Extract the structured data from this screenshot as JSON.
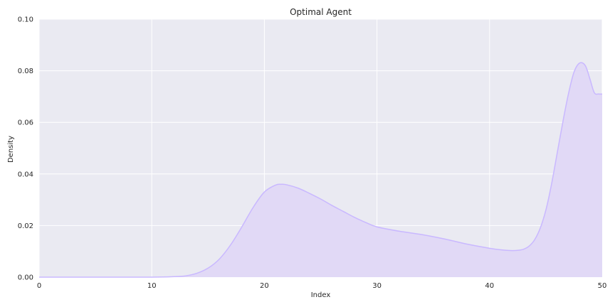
{
  "chart_data": {
    "type": "area",
    "title": "Optimal Agent",
    "xlabel": "Index",
    "ylabel": "Density",
    "xlim": [
      0,
      50
    ],
    "ylim": [
      0,
      0.1
    ],
    "x_ticks": [
      "0",
      "10",
      "20",
      "30",
      "40",
      "50"
    ],
    "y_ticks": [
      "0.00",
      "0.02",
      "0.04",
      "0.06",
      "0.08",
      "0.10"
    ],
    "grid": true,
    "colors": {
      "plot_background": "#eaeaf2",
      "grid": "#ffffff",
      "line": "#c9b8ff",
      "fill": "#e1d9f6"
    },
    "series": [
      {
        "x": [
          0,
          5,
          10,
          12,
          13,
          14,
          15,
          16,
          17,
          18,
          19,
          20,
          21,
          21.5,
          22,
          23,
          24,
          25,
          26,
          27,
          28,
          29,
          30,
          32,
          34,
          36,
          38,
          40,
          41,
          42,
          42.5,
          43,
          43.5,
          44,
          44.5,
          45,
          45.5,
          46,
          46.5,
          47,
          47.5,
          48,
          48.5,
          48.9,
          49.3,
          49.7,
          50
        ],
        "y": [
          0,
          0,
          0,
          0.0002,
          0.0005,
          0.0015,
          0.0035,
          0.007,
          0.0125,
          0.0195,
          0.027,
          0.033,
          0.0357,
          0.036,
          0.0358,
          0.0345,
          0.0325,
          0.0303,
          0.0278,
          0.0255,
          0.0232,
          0.0212,
          0.0195,
          0.0178,
          0.0165,
          0.0148,
          0.0128,
          0.0112,
          0.0106,
          0.0103,
          0.0104,
          0.0108,
          0.012,
          0.0145,
          0.019,
          0.026,
          0.036,
          0.048,
          0.06,
          0.071,
          0.0795,
          0.083,
          0.082,
          0.077,
          0.0715,
          0.071,
          0.071
        ]
      }
    ]
  }
}
